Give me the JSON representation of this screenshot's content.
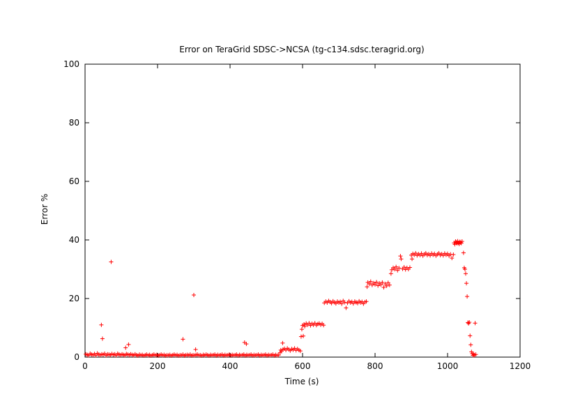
{
  "chart_data": {
    "type": "scatter",
    "title": "Error on TeraGrid SDSC->NCSA (tg-c134.sdsc.teragrid.org)",
    "xlabel": "Time (s)",
    "ylabel": "Error %",
    "xlim": [
      0,
      1200
    ],
    "ylim": [
      0,
      100
    ],
    "xticks": [
      "0",
      "200",
      "400",
      "600",
      "800",
      "1000",
      "1200"
    ],
    "yticks": [
      "0",
      "20",
      "40",
      "60",
      "80",
      "100"
    ],
    "grid": false,
    "marker": "plus",
    "color": "#ff0000",
    "series": [
      {
        "points": [
          [
            2,
            1.0
          ],
          [
            6,
            0.8
          ],
          [
            10,
            0.6
          ],
          [
            14,
            1.2
          ],
          [
            18,
            0.9
          ],
          [
            22,
            0.7
          ],
          [
            26,
            1.1
          ],
          [
            30,
            0.6
          ],
          [
            34,
            1.3
          ],
          [
            38,
            0.9
          ],
          [
            42,
            0.7
          ],
          [
            46,
            1.0
          ],
          [
            50,
            0.8
          ],
          [
            54,
            1.2
          ],
          [
            58,
            0.6
          ],
          [
            62,
            1.0
          ],
          [
            66,
            0.9
          ],
          [
            70,
            0.7
          ],
          [
            74,
            1.1
          ],
          [
            78,
            0.8
          ],
          [
            82,
            1.0
          ],
          [
            86,
            0.6
          ],
          [
            90,
            1.2
          ],
          [
            94,
            0.9
          ],
          [
            98,
            0.7
          ],
          [
            102,
            1.0
          ],
          [
            106,
            0.8
          ],
          [
            110,
            0.6
          ],
          [
            114,
            1.1
          ],
          [
            118,
            0.9
          ],
          [
            122,
            0.7
          ],
          [
            126,
            1.0
          ],
          [
            130,
            0.8
          ],
          [
            134,
            0.6
          ],
          [
            138,
            1.0
          ],
          [
            142,
            0.7
          ],
          [
            146,
            0.5
          ],
          [
            150,
            0.9
          ],
          [
            154,
            0.6
          ],
          [
            158,
            0.8
          ],
          [
            162,
            0.5
          ],
          [
            166,
            0.7
          ],
          [
            170,
            0.9
          ],
          [
            174,
            0.6
          ],
          [
            178,
            0.8
          ],
          [
            182,
            0.5
          ],
          [
            186,
            0.7
          ],
          [
            190,
            0.9
          ],
          [
            194,
            0.6
          ],
          [
            198,
            0.8
          ],
          [
            202,
            0.5
          ],
          [
            206,
            0.7
          ],
          [
            210,
            0.9
          ],
          [
            214,
            0.6
          ],
          [
            218,
            0.8
          ],
          [
            222,
            0.5
          ],
          [
            226,
            0.7
          ],
          [
            230,
            0.6
          ],
          [
            234,
            0.8
          ],
          [
            238,
            0.5
          ],
          [
            242,
            0.7
          ],
          [
            246,
            0.9
          ],
          [
            250,
            0.6
          ],
          [
            254,
            0.8
          ],
          [
            258,
            0.5
          ],
          [
            262,
            0.7
          ],
          [
            266,
            0.6
          ],
          [
            270,
            0.9
          ],
          [
            274,
            0.5
          ],
          [
            278,
            0.7
          ],
          [
            282,
            0.8
          ],
          [
            286,
            0.6
          ],
          [
            290,
            0.9
          ],
          [
            294,
            0.5
          ],
          [
            298,
            0.7
          ],
          [
            302,
            0.6
          ],
          [
            306,
            0.8
          ],
          [
            310,
            0.9
          ],
          [
            314,
            0.6
          ],
          [
            318,
            0.7
          ],
          [
            322,
            0.5
          ],
          [
            326,
            0.8
          ],
          [
            330,
            0.6
          ],
          [
            334,
            0.9
          ],
          [
            338,
            0.7
          ],
          [
            342,
            0.5
          ],
          [
            346,
            0.8
          ],
          [
            350,
            0.6
          ],
          [
            354,
            0.7
          ],
          [
            358,
            0.9
          ],
          [
            362,
            0.5
          ],
          [
            366,
            0.8
          ],
          [
            370,
            0.6
          ],
          [
            374,
            0.7
          ],
          [
            378,
            0.9
          ],
          [
            382,
            0.5
          ],
          [
            386,
            0.8
          ],
          [
            390,
            0.6
          ],
          [
            394,
            0.7
          ],
          [
            398,
            0.9
          ],
          [
            402,
            0.5
          ],
          [
            406,
            0.8
          ],
          [
            410,
            0.6
          ],
          [
            414,
            0.7
          ],
          [
            418,
            0.9
          ],
          [
            422,
            0.5
          ],
          [
            426,
            0.8
          ],
          [
            430,
            0.6
          ],
          [
            434,
            0.7
          ],
          [
            438,
            0.9
          ],
          [
            442,
            0.5
          ],
          [
            446,
            0.8
          ],
          [
            450,
            0.6
          ],
          [
            454,
            0.7
          ],
          [
            458,
            0.9
          ],
          [
            462,
            0.5
          ],
          [
            466,
            0.8
          ],
          [
            470,
            0.6
          ],
          [
            474,
            0.7
          ],
          [
            478,
            0.9
          ],
          [
            482,
            0.5
          ],
          [
            486,
            0.8
          ],
          [
            490,
            0.6
          ],
          [
            494,
            0.7
          ],
          [
            498,
            0.9
          ],
          [
            502,
            0.5
          ],
          [
            506,
            0.8
          ],
          [
            510,
            0.6
          ],
          [
            514,
            0.7
          ],
          [
            518,
            0.9
          ],
          [
            522,
            0.5
          ],
          [
            526,
            0.8
          ],
          [
            530,
            0.6
          ],
          [
            534,
            0.7
          ],
          [
            45,
            11.0
          ],
          [
            48,
            6.3
          ],
          [
            72,
            32.5
          ],
          [
            112,
            3.2
          ],
          [
            120,
            4.3
          ],
          [
            270,
            6.1
          ],
          [
            300,
            21.2
          ],
          [
            305,
            2.6
          ],
          [
            440,
            5.0
          ],
          [
            445,
            4.5
          ],
          [
            540,
            2.4
          ],
          [
            545,
            4.8
          ],
          [
            538,
            1.5
          ],
          [
            542,
            2.0
          ],
          [
            546,
            2.6
          ],
          [
            550,
            2.9
          ],
          [
            554,
            2.4
          ],
          [
            558,
            3.0
          ],
          [
            562,
            2.6
          ],
          [
            566,
            2.2
          ],
          [
            570,
            2.8
          ],
          [
            574,
            2.5
          ],
          [
            578,
            3.0
          ],
          [
            582,
            2.3
          ],
          [
            586,
            2.8
          ],
          [
            590,
            2.4
          ],
          [
            594,
            2.1
          ],
          [
            596,
            7.0
          ],
          [
            598,
            9.5
          ],
          [
            600,
            10.8
          ],
          [
            602,
            7.2
          ],
          [
            604,
            11.2
          ],
          [
            606,
            10.5
          ],
          [
            610,
            11.5
          ],
          [
            614,
            11.0
          ],
          [
            618,
            11.6
          ],
          [
            622,
            10.8
          ],
          [
            626,
            11.4
          ],
          [
            630,
            11.0
          ],
          [
            634,
            11.6
          ],
          [
            638,
            10.9
          ],
          [
            642,
            11.3
          ],
          [
            646,
            11.5
          ],
          [
            650,
            11.0
          ],
          [
            654,
            11.4
          ],
          [
            658,
            10.9
          ],
          [
            660,
            18.5
          ],
          [
            664,
            19.0
          ],
          [
            668,
            18.6
          ],
          [
            672,
            19.2
          ],
          [
            676,
            18.8
          ],
          [
            680,
            18.4
          ],
          [
            684,
            19.1
          ],
          [
            688,
            18.7
          ],
          [
            692,
            18.3
          ],
          [
            696,
            19.0
          ],
          [
            700,
            18.6
          ],
          [
            704,
            18.9
          ],
          [
            708,
            18.2
          ],
          [
            712,
            19.2
          ],
          [
            716,
            18.7
          ],
          [
            720,
            16.8
          ],
          [
            724,
            18.5
          ],
          [
            728,
            19.1
          ],
          [
            732,
            18.6
          ],
          [
            736,
            18.9
          ],
          [
            740,
            18.3
          ],
          [
            744,
            19.0
          ],
          [
            748,
            18.7
          ],
          [
            752,
            18.4
          ],
          [
            756,
            19.1
          ],
          [
            760,
            18.6
          ],
          [
            764,
            18.9
          ],
          [
            768,
            18.2
          ],
          [
            772,
            18.8
          ],
          [
            776,
            19.0
          ],
          [
            778,
            24.0
          ],
          [
            780,
            25.5
          ],
          [
            784,
            25.0
          ],
          [
            788,
            25.8
          ],
          [
            792,
            24.6
          ],
          [
            796,
            25.3
          ],
          [
            800,
            24.8
          ],
          [
            804,
            25.6
          ],
          [
            808,
            24.4
          ],
          [
            812,
            25.2
          ],
          [
            816,
            24.7
          ],
          [
            820,
            25.5
          ],
          [
            824,
            23.8
          ],
          [
            828,
            25.0
          ],
          [
            832,
            24.3
          ],
          [
            836,
            25.4
          ],
          [
            840,
            24.6
          ],
          [
            844,
            28.5
          ],
          [
            846,
            29.8
          ],
          [
            850,
            30.5
          ],
          [
            854,
            30.0
          ],
          [
            858,
            30.8
          ],
          [
            862,
            29.6
          ],
          [
            866,
            30.4
          ],
          [
            870,
            34.5
          ],
          [
            872,
            33.5
          ],
          [
            876,
            30.1
          ],
          [
            880,
            30.7
          ],
          [
            884,
            29.9
          ],
          [
            888,
            30.5
          ],
          [
            892,
            30.0
          ],
          [
            896,
            30.6
          ],
          [
            900,
            34.8
          ],
          [
            902,
            33.5
          ],
          [
            904,
            35.3
          ],
          [
            908,
            34.9
          ],
          [
            912,
            35.5
          ],
          [
            916,
            34.7
          ],
          [
            920,
            35.2
          ],
          [
            924,
            34.8
          ],
          [
            928,
            35.4
          ],
          [
            932,
            34.6
          ],
          [
            936,
            35.1
          ],
          [
            940,
            35.5
          ],
          [
            944,
            34.8
          ],
          [
            948,
            35.2
          ],
          [
            952,
            34.7
          ],
          [
            956,
            35.4
          ],
          [
            960,
            34.9
          ],
          [
            964,
            35.3
          ],
          [
            968,
            34.6
          ],
          [
            972,
            35.1
          ],
          [
            976,
            35.5
          ],
          [
            980,
            34.8
          ],
          [
            984,
            35.2
          ],
          [
            988,
            34.7
          ],
          [
            992,
            35.4
          ],
          [
            996,
            34.9
          ],
          [
            1000,
            35.3
          ],
          [
            1004,
            34.6
          ],
          [
            1008,
            35.1
          ],
          [
            1012,
            33.8
          ],
          [
            1016,
            35.0
          ],
          [
            1018,
            39.0
          ],
          [
            1020,
            38.5
          ],
          [
            1022,
            39.5
          ],
          [
            1024,
            39.2
          ],
          [
            1026,
            38.8
          ],
          [
            1028,
            39.6
          ],
          [
            1030,
            39.0
          ],
          [
            1032,
            38.6
          ],
          [
            1034,
            39.4
          ],
          [
            1036,
            39.1
          ],
          [
            1038,
            38.9
          ],
          [
            1040,
            39.5
          ],
          [
            1044,
            35.6
          ],
          [
            1046,
            30.5
          ],
          [
            1048,
            30.0
          ],
          [
            1050,
            28.5
          ],
          [
            1052,
            25.2
          ],
          [
            1054,
            20.7
          ],
          [
            1056,
            11.8
          ],
          [
            1058,
            11.5
          ],
          [
            1060,
            11.9
          ],
          [
            1062,
            7.3
          ],
          [
            1064,
            4.2
          ],
          [
            1066,
            1.8
          ],
          [
            1068,
            1.2
          ],
          [
            1070,
            0.6
          ],
          [
            1072,
            1.0
          ],
          [
            1074,
            0.7
          ],
          [
            1076,
            11.6
          ],
          [
            1078,
            0.9
          ]
        ]
      }
    ]
  }
}
